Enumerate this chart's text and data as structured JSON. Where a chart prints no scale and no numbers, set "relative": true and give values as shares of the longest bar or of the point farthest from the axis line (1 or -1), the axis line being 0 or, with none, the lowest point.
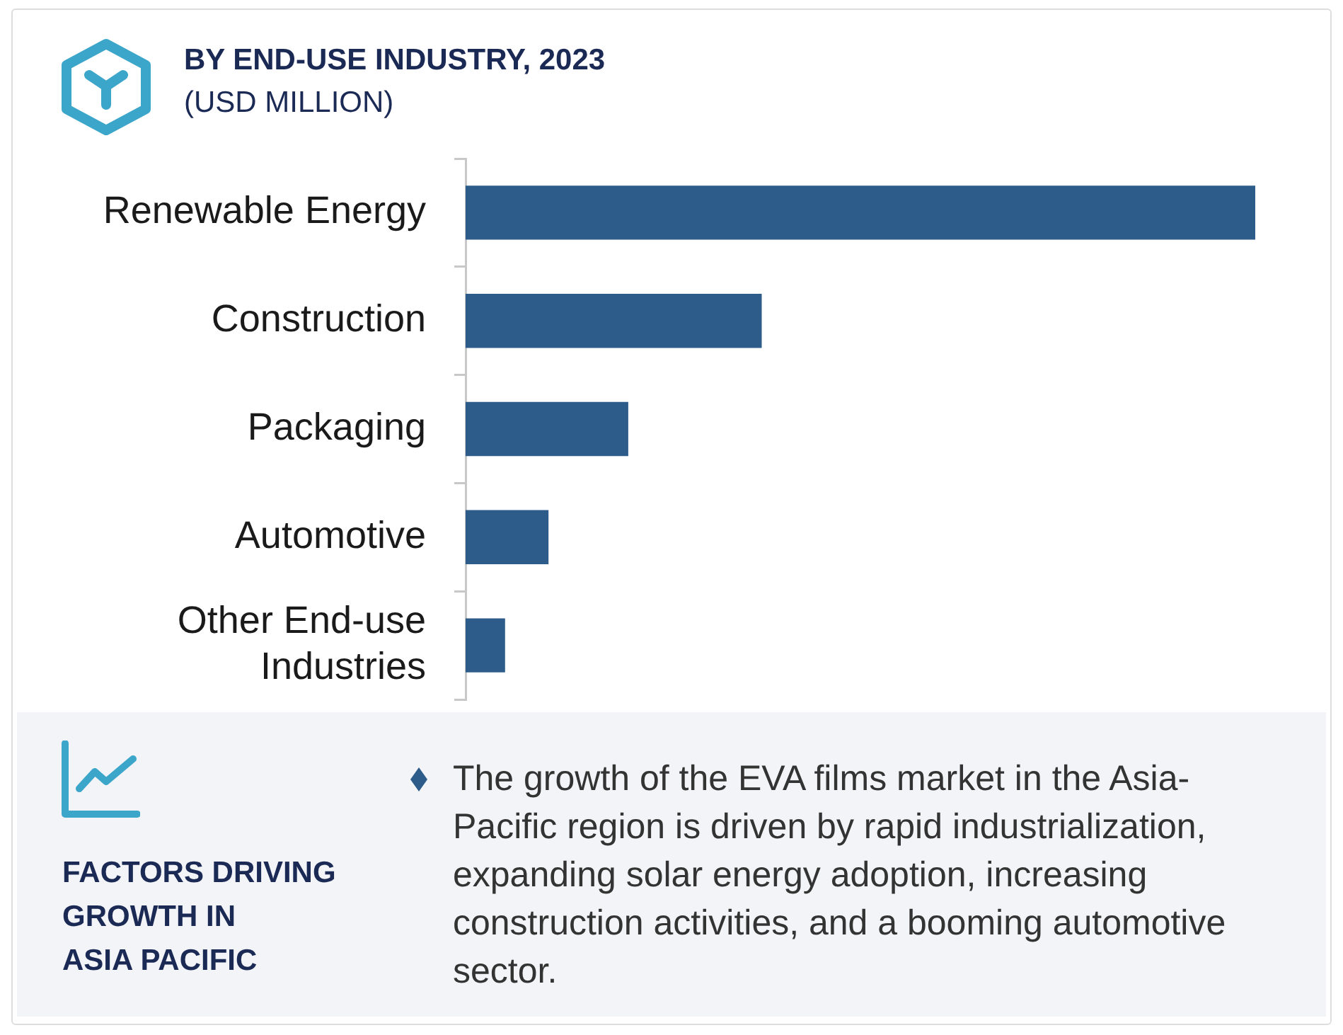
{
  "chart_data": {
    "type": "bar",
    "orientation": "horizontal",
    "relative": true,
    "title": "BY END-USE INDUSTRY, 2023",
    "subtitle": "(USD MILLION)",
    "categories": [
      "Renewable Energy",
      "Construction",
      "Packaging",
      "Automotive",
      "Other End-use Industries"
    ],
    "values": [
      1,
      0.375,
      0.206,
      0.105,
      0.05
    ],
    "color": "#2d5b8a",
    "annotations": [
      "FACTORS DRIVING\nGROWTH IN\nASIA PACIFIC",
      "The growth of the EVA films market in the Asia-Pacific region is driven by rapid industrialization, expanding solar energy adoption, increasing construction activities, and a booming automotive sector."
    ]
  }
}
